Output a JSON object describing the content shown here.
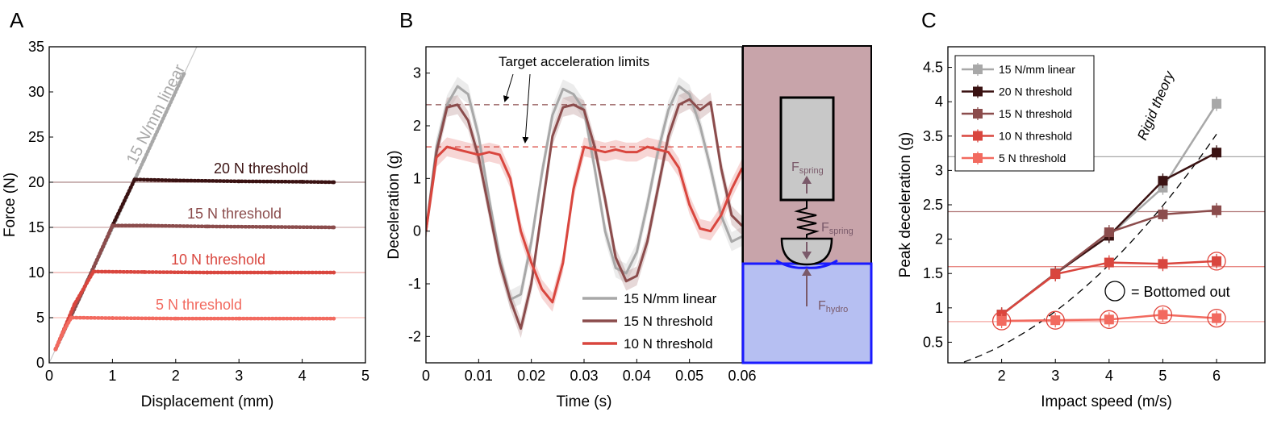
{
  "panels": {
    "a": {
      "letter": "A"
    },
    "b": {
      "letter": "B"
    },
    "c": {
      "letter": "C"
    }
  },
  "chart_data": [
    {
      "id": "A",
      "type": "scatter",
      "xlabel": "Displacement (mm)",
      "ylabel": "Force (N)",
      "xlim": [
        0,
        5
      ],
      "ylim": [
        0,
        35
      ],
      "xticks": [
        0,
        1,
        2,
        3,
        4,
        5
      ],
      "yticks": [
        0,
        5,
        10,
        15,
        20,
        25,
        30,
        35
      ],
      "grid": false,
      "threshold_lines": [
        20,
        15,
        10,
        5
      ],
      "series": [
        {
          "name": "15 N/mm linear",
          "color": "#a8a8a8",
          "points": [
            [
              0.1,
              1.5
            ],
            [
              0.5,
              7.5
            ],
            [
              1.0,
              15.0
            ],
            [
              1.5,
              22.5
            ],
            [
              2.13,
              32.0
            ]
          ],
          "guide_line": [
            [
              0,
              0
            ],
            [
              2.4,
              36
            ]
          ]
        },
        {
          "name": "20 N threshold",
          "color": "#3a1212",
          "points": [
            [
              0.1,
              1.5
            ],
            [
              0.6,
              9
            ],
            [
              1.0,
              15.2
            ],
            [
              1.35,
              20.3
            ],
            [
              2.0,
              20.2
            ],
            [
              3.0,
              20.1
            ],
            [
              4.0,
              20.05
            ],
            [
              4.5,
              20.0
            ]
          ]
        },
        {
          "name": "15 N threshold",
          "color": "#8b4c4c",
          "points": [
            [
              0.1,
              1.5
            ],
            [
              0.6,
              9
            ],
            [
              1.0,
              15.2
            ],
            [
              1.5,
              15.2
            ],
            [
              2.5,
              15.1
            ],
            [
              3.5,
              15.05
            ],
            [
              4.5,
              15.0
            ]
          ]
        },
        {
          "name": "10 N threshold",
          "color": "#d9463e",
          "points": [
            [
              0.1,
              1.5
            ],
            [
              0.4,
              6.5
            ],
            [
              0.7,
              10.1
            ],
            [
              1.5,
              10.05
            ],
            [
              2.5,
              10.0
            ],
            [
              3.5,
              10.0
            ],
            [
              4.5,
              10.0
            ]
          ]
        },
        {
          "name": "5 N threshold",
          "color": "#f26a5f",
          "points": [
            [
              0.1,
              1.5
            ],
            [
              0.25,
              3.8
            ],
            [
              0.35,
              5.0
            ],
            [
              1.0,
              4.95
            ],
            [
              2.0,
              4.9
            ],
            [
              3.0,
              4.9
            ],
            [
              4.0,
              4.9
            ],
            [
              4.5,
              4.9
            ]
          ]
        }
      ],
      "annotations": [
        {
          "text": "15 N/mm linear",
          "color": "#a8a8a8"
        },
        {
          "text": "20 N threshold",
          "color": "#3a1212"
        },
        {
          "text": "15 N threshold",
          "color": "#8b4c4c"
        },
        {
          "text": "10 N threshold",
          "color": "#d9463e"
        },
        {
          "text": "5 N threshold",
          "color": "#f26a5f"
        }
      ]
    },
    {
      "id": "B",
      "type": "line",
      "xlabel": "Time (s)",
      "ylabel": "Deceleration (g)",
      "xlim": [
        0,
        0.06
      ],
      "ylim": [
        -2.5,
        3.5
      ],
      "xticks": [
        "0",
        "0.01",
        "0.02",
        "0.03",
        "0.04",
        "0.05",
        "0.06"
      ],
      "yticks": [
        -2,
        -1,
        0,
        1,
        2,
        3
      ],
      "target_limits": [
        {
          "y": 2.4,
          "color": "#8b4c4c"
        },
        {
          "y": 1.6,
          "color": "#d9463e"
        }
      ],
      "annotation": "Target acceleration limits",
      "series": [
        {
          "name": "15 N/mm linear",
          "color": "#a8a8a8",
          "x": [
            0,
            0.002,
            0.004,
            0.006,
            0.008,
            0.01,
            0.012,
            0.014,
            0.016,
            0.018,
            0.02,
            0.022,
            0.024,
            0.026,
            0.028,
            0.03,
            0.032,
            0.034,
            0.036,
            0.038,
            0.04,
            0.042,
            0.044,
            0.046,
            0.048,
            0.05,
            0.052,
            0.054,
            0.056,
            0.058,
            0.06
          ],
          "y": [
            0,
            1.6,
            2.4,
            2.75,
            2.6,
            1.8,
            0.6,
            -0.5,
            -1.3,
            -1.2,
            -0.2,
            1.1,
            2.2,
            2.7,
            2.6,
            2.3,
            1.2,
            0,
            -0.7,
            -0.8,
            -0.4,
            0.5,
            1.5,
            2.3,
            2.75,
            2.6,
            2.0,
            1.2,
            0.3,
            -0.2,
            -0.1
          ]
        },
        {
          "name": "15 N threshold",
          "color": "#8b4c4c",
          "x": [
            0,
            0.002,
            0.004,
            0.006,
            0.008,
            0.01,
            0.012,
            0.014,
            0.016,
            0.018,
            0.02,
            0.022,
            0.024,
            0.026,
            0.028,
            0.03,
            0.032,
            0.034,
            0.036,
            0.038,
            0.04,
            0.042,
            0.044,
            0.046,
            0.048,
            0.05,
            0.052,
            0.054,
            0.056,
            0.058,
            0.06
          ],
          "y": [
            0,
            1.5,
            2.35,
            2.4,
            2.1,
            1.4,
            0.4,
            -0.6,
            -1.3,
            -1.85,
            -1.0,
            0.4,
            1.8,
            2.35,
            2.4,
            2.3,
            1.6,
            0.6,
            -0.5,
            -0.95,
            -0.85,
            -0.2,
            0.8,
            1.8,
            2.4,
            2.5,
            2.3,
            2.45,
            1.2,
            0.3,
            0.1
          ]
        },
        {
          "name": "10 N threshold",
          "color": "#d9463e",
          "x": [
            0,
            0.002,
            0.004,
            0.006,
            0.008,
            0.01,
            0.012,
            0.014,
            0.016,
            0.018,
            0.02,
            0.022,
            0.024,
            0.026,
            0.028,
            0.03,
            0.032,
            0.034,
            0.036,
            0.038,
            0.04,
            0.042,
            0.044,
            0.046,
            0.048,
            0.05,
            0.052,
            0.054,
            0.056,
            0.058,
            0.06
          ],
          "y": [
            0,
            1.4,
            1.6,
            1.55,
            1.5,
            1.45,
            1.5,
            1.45,
            1.0,
            0,
            -0.6,
            -1.1,
            -1.35,
            -0.6,
            0.8,
            1.6,
            1.55,
            1.5,
            1.55,
            1.5,
            1.5,
            1.6,
            1.55,
            1.5,
            1.2,
            0.5,
            0.05,
            0.0,
            0.3,
            0.8,
            1.2
          ]
        }
      ],
      "diagram": {
        "label_spring_top": "F",
        "label_spring_top_sub": "spring",
        "label_spring_mid": "F",
        "label_spring_mid_sub": "spring",
        "label_hydro": "F",
        "label_hydro_sub": "hydro"
      }
    },
    {
      "id": "C",
      "type": "line",
      "xlabel": "Impact speed (m/s)",
      "ylabel": "Peak deceleration (g)",
      "xlim": [
        1,
        6.9
      ],
      "ylim": [
        0.2,
        4.8
      ],
      "xticks": [
        2,
        3,
        4,
        5,
        6
      ],
      "yticks": [
        "0.5",
        "1",
        "1.5",
        "2",
        "2.5",
        "3",
        "3.5",
        "4",
        "4.5"
      ],
      "threshold_lines": [
        {
          "y": 3.2,
          "color": "#a8a8a8"
        },
        {
          "y": 2.4,
          "color": "#b07878"
        },
        {
          "y": 1.6,
          "color": "#e98a84"
        },
        {
          "y": 0.8,
          "color": "#f4a7a1"
        }
      ],
      "rigid_theory_label": "Rigid theory",
      "bottomed_legend": "= Bottomed out",
      "series": [
        {
          "name": "15 N/mm linear",
          "color": "#a8a8a8",
          "x": [
            2,
            3,
            4,
            5,
            6
          ],
          "y": [
            0.9,
            1.5,
            2.05,
            2.75,
            3.97
          ]
        },
        {
          "name": "20 N threshold",
          "color": "#3a1212",
          "x": [
            2,
            3,
            4,
            5,
            6
          ],
          "y": [
            0.9,
            1.5,
            2.05,
            2.85,
            3.26
          ]
        },
        {
          "name": "15 N threshold",
          "color": "#8b4c4c",
          "x": [
            2,
            3,
            4,
            5,
            6
          ],
          "y": [
            0.9,
            1.5,
            2.1,
            2.36,
            2.42
          ]
        },
        {
          "name": "10 N threshold",
          "color": "#d9463e",
          "x": [
            2,
            3,
            4,
            5,
            6
          ],
          "y": [
            0.9,
            1.49,
            1.66,
            1.64,
            1.68
          ]
        },
        {
          "name": "5 N threshold",
          "color": "#f26a5f",
          "x": [
            2,
            3,
            4,
            5,
            6
          ],
          "y": [
            0.81,
            0.82,
            0.83,
            0.9,
            0.85
          ]
        }
      ],
      "bottomed_out": [
        {
          "series": "10 N threshold",
          "x": 6,
          "y": 1.68
        },
        {
          "series": "5 N threshold",
          "x": 2,
          "y": 0.81
        },
        {
          "series": "5 N threshold",
          "x": 3,
          "y": 0.82
        },
        {
          "series": "5 N threshold",
          "x": 4,
          "y": 0.83
        },
        {
          "series": "5 N threshold",
          "x": 5,
          "y": 0.9
        },
        {
          "series": "5 N threshold",
          "x": 6,
          "y": 0.85
        }
      ],
      "legend": [
        "15 N/mm linear",
        "20 N threshold",
        "15 N threshold",
        "10 N threshold",
        "5 N threshold"
      ],
      "legend_position": "top-left"
    }
  ]
}
